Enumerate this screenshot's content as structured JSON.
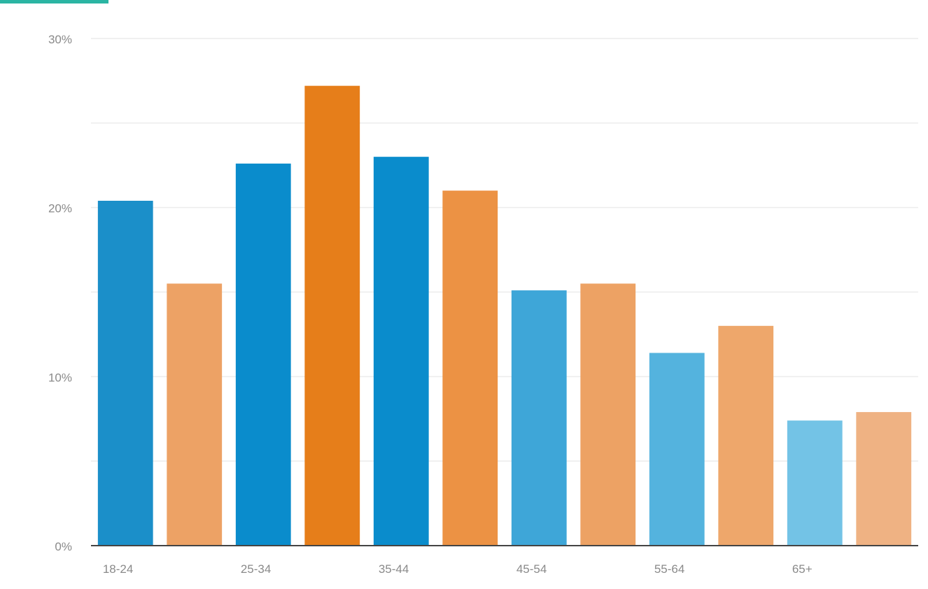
{
  "accent_color": "#2bb5a3",
  "chart_data": {
    "type": "bar",
    "title": "",
    "xlabel": "",
    "ylabel": "",
    "ylim": [
      0,
      30
    ],
    "y_ticks": [
      0,
      10,
      20,
      30
    ],
    "y_tick_labels": [
      "0%",
      "10%",
      "20%",
      "30%"
    ],
    "grid": true,
    "legend": "none",
    "categories": [
      "18-24",
      "25-34",
      "35-44",
      "45-54",
      "55-64",
      "65+"
    ],
    "series": [
      {
        "values": [
          20.4,
          22.6,
          23.0,
          15.1,
          11.4,
          7.4
        ],
        "colors": [
          "#1b8fc9",
          "#0a8ccc",
          "#0a8ccc",
          "#3ea6d8",
          "#54b3de",
          "#73c3e6"
        ]
      },
      {
        "values": [
          15.5,
          27.2,
          21.0,
          15.5,
          13.0,
          7.9
        ],
        "colors": [
          "#eda265",
          "#e67e1a",
          "#ec9244",
          "#eda264",
          "#eea76b",
          "#efb283"
        ]
      }
    ]
  }
}
